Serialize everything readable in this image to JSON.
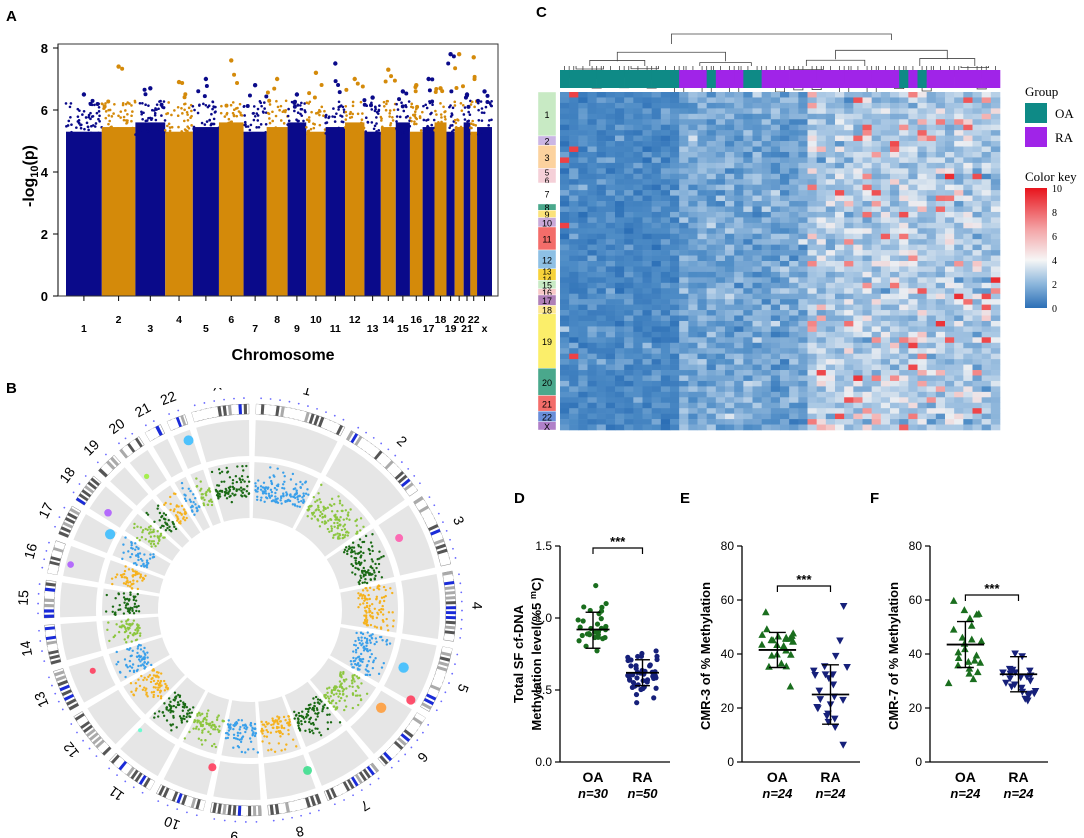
{
  "panel_labels": {
    "a": "A",
    "b": "B",
    "c": "C",
    "d": "D",
    "e": "E",
    "f": "F"
  },
  "colors": {
    "manhattan_dark": "#0a0a8a",
    "manhattan_light": "#d48a0a",
    "oa": "#0e8a86",
    "ra": "#a024e8",
    "circos_blue": "#3aa0ea",
    "circos_dkgreen": "#1a6a14",
    "circos_ltgreen": "#8cc63f",
    "circos_orange": "#f5b21e",
    "dot_oa": "#1a6e1e",
    "dot_ra": "#16207a",
    "tri_oa": "#1a6e1e",
    "tri_ra": "#16207a"
  },
  "chart_data": [
    {
      "id": "A",
      "type": "scatter",
      "title": "",
      "xlabel": "Chromosome",
      "ylabel": "-log10(p)",
      "ylim": [
        0,
        8
      ],
      "y_ticks": [
        "0",
        "2",
        "4",
        "6",
        "8"
      ],
      "chromosomes": [
        "1",
        "2",
        "3",
        "4",
        "5",
        "6",
        "7",
        "8",
        "9",
        "10",
        "11",
        "12",
        "13",
        "14",
        "15",
        "16",
        "17",
        "18",
        "19",
        "20",
        "21",
        "22",
        "x"
      ],
      "chromosome_peaks": [
        6.5,
        7.4,
        6.7,
        6.9,
        7.0,
        7.6,
        6.8,
        7.0,
        6.5,
        7.2,
        7.5,
        7.0,
        6.4,
        7.3,
        6.6,
        6.8,
        7.0,
        6.7,
        7.8,
        7.8,
        6.5,
        7.7,
        6.6
      ]
    },
    {
      "id": "B",
      "type": "circos",
      "chromosomes": [
        "1",
        "2",
        "3",
        "4",
        "5",
        "6",
        "7",
        "8",
        "9",
        "10",
        "11",
        "12",
        "13",
        "14",
        "15",
        "16",
        "17",
        "18",
        "19",
        "20",
        "21",
        "22",
        "X"
      ]
    },
    {
      "id": "C",
      "type": "heatmap",
      "legend_group_title": "Group",
      "groups": [
        {
          "name": "OA"
        },
        {
          "name": "RA"
        }
      ],
      "color_key_title": "Color key",
      "color_key_ticks": [
        "10",
        "8",
        "6",
        "4",
        "2",
        "0"
      ],
      "color_range": [
        0,
        10
      ],
      "row_chromosomes": [
        "1",
        "2",
        "3",
        "5\n6",
        "7",
        "8",
        "9",
        "10",
        "11",
        "12",
        "13\n14",
        "15",
        "16",
        "17",
        "18",
        "19",
        "20",
        "21",
        "22",
        "X"
      ]
    },
    {
      "id": "D",
      "type": "scatter",
      "ylabel": "Total SF cf-DNA\nMethylation level(%5 mC)",
      "ylabel_line1": "Total SF cf-DNA",
      "ylabel_line2": "Methylation level(%5 ",
      "ylabel_sup": "m",
      "ylabel_end": "C)",
      "ylim": [
        0.0,
        1.5
      ],
      "y_ticks": [
        "0.0",
        "0.5",
        "1.0",
        "1.5"
      ],
      "categories": [
        "OA",
        "RA"
      ],
      "n_labels": [
        "n=30",
        "n=50"
      ],
      "series": [
        {
          "name": "OA",
          "mean": 0.92,
          "sd_low": 0.79,
          "sd_high": 1.04
        },
        {
          "name": "RA",
          "mean": 0.62,
          "sd_low": 0.53,
          "sd_high": 0.71
        }
      ],
      "significance": "***"
    },
    {
      "id": "E",
      "type": "scatter",
      "ylabel": "CMR-3 of % Methylation",
      "ylim": [
        0,
        80
      ],
      "y_ticks": [
        "0",
        "20",
        "40",
        "60",
        "80"
      ],
      "categories": [
        "OA",
        "RA"
      ],
      "n_labels": [
        "n=24",
        "n=24"
      ],
      "series": [
        {
          "name": "OA",
          "mean": 41.5,
          "sd_low": 35.0,
          "sd_high": 48.0
        },
        {
          "name": "RA",
          "mean": 25.0,
          "sd_low": 14.0,
          "sd_high": 36.0
        }
      ],
      "significance": "***"
    },
    {
      "id": "F",
      "type": "scatter",
      "ylabel": "CMR-7 of % Methylation",
      "ylim": [
        0,
        80
      ],
      "y_ticks": [
        "0",
        "20",
        "40",
        "60",
        "80"
      ],
      "categories": [
        "OA",
        "RA"
      ],
      "n_labels": [
        "n=24",
        "n=24"
      ],
      "series": [
        {
          "name": "OA",
          "mean": 43.5,
          "sd_low": 35.0,
          "sd_high": 52.0
        },
        {
          "name": "RA",
          "mean": 32.5,
          "sd_low": 26.0,
          "sd_high": 39.0
        }
      ],
      "significance": "***"
    }
  ]
}
